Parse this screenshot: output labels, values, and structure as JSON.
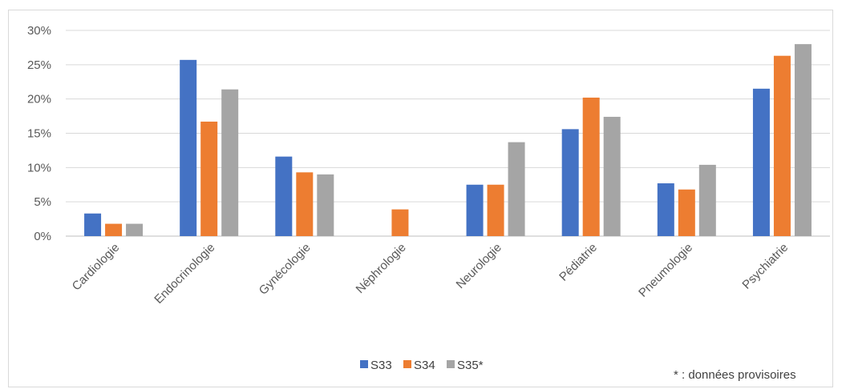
{
  "chart_data": {
    "type": "bar",
    "categories": [
      "Cardiologie",
      "Endocrinologie",
      "Gynécologie",
      "Néphrologie",
      "Neurologie",
      "Pédiatrie",
      "Pneumologie",
      "Psychiatrie"
    ],
    "series": [
      {
        "name": "S33",
        "color": "#4472c4",
        "values": [
          3.3,
          25.7,
          11.6,
          0,
          7.5,
          15.6,
          7.7,
          21.5
        ]
      },
      {
        "name": "S34",
        "color": "#ed7d31",
        "values": [
          1.8,
          16.7,
          9.3,
          3.9,
          7.5,
          20.2,
          6.8,
          26.3
        ]
      },
      {
        "name": "S35*",
        "color": "#a5a5a5",
        "values": [
          1.8,
          21.4,
          9.0,
          0,
          13.7,
          17.4,
          10.4,
          28.0
        ]
      }
    ],
    "ylim": [
      0,
      30
    ],
    "y_ticks": [
      "0%",
      "5%",
      "10%",
      "15%",
      "20%",
      "25%",
      "30%"
    ],
    "y_unit": "%",
    "grid": true,
    "legend_position": "bottom"
  },
  "footnote": "* : données provisoires"
}
